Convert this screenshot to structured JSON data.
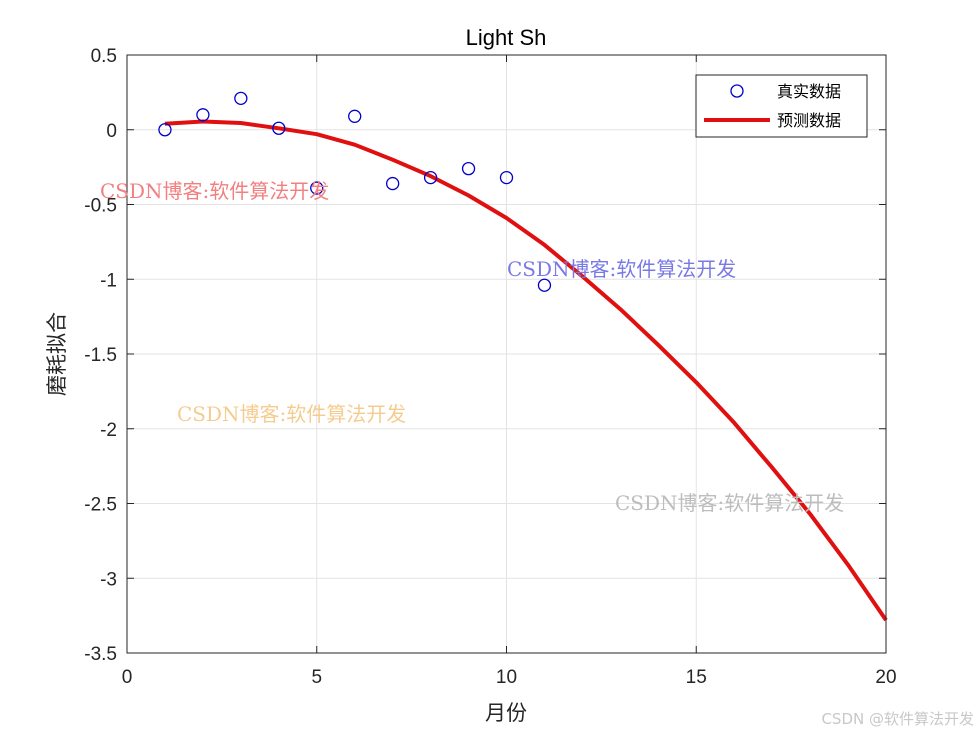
{
  "chart_data": {
    "type": "scatter",
    "title": "Light Sh",
    "xlabel": "月份",
    "ylabel": "磨耗拟合",
    "xlim": [
      0,
      20
    ],
    "ylim": [
      -3.5,
      0.5
    ],
    "xticks": [
      0,
      5,
      10,
      15,
      20
    ],
    "yticks": [
      0.5,
      0,
      -0.5,
      -1,
      -1.5,
      -2,
      -2.5,
      -3,
      -3.5
    ],
    "grid": true,
    "legend_position": "top-right",
    "series": [
      {
        "name": "真实数据",
        "kind": "marker",
        "marker": "circle",
        "color": "#0000cc",
        "x": [
          1,
          2,
          3,
          4,
          5,
          6,
          7,
          8,
          9,
          10,
          11
        ],
        "y": [
          0.0,
          0.1,
          0.21,
          0.01,
          -0.39,
          0.09,
          -0.36,
          -0.32,
          -0.26,
          -0.32,
          -1.04
        ]
      },
      {
        "name": "预测数据",
        "kind": "line",
        "color": "#e01010",
        "x": [
          1,
          2,
          3,
          4,
          5,
          6,
          7,
          8,
          9,
          10,
          11,
          12,
          13,
          14,
          15,
          16,
          17,
          18,
          19,
          20
        ],
        "y": [
          0.04,
          0.055,
          0.045,
          0.01,
          -0.03,
          -0.1,
          -0.2,
          -0.31,
          -0.44,
          -0.59,
          -0.77,
          -0.98,
          -1.2,
          -1.44,
          -1.69,
          -1.96,
          -2.26,
          -2.57,
          -2.91,
          -3.28
        ]
      }
    ]
  },
  "watermarks": [
    {
      "text": "CSDN博客:软件算法开发",
      "color": "#f28080"
    },
    {
      "text": "CSDN博客:软件算法开发",
      "color": "#7a7ae6"
    },
    {
      "text": "CSDN博客:软件算法开发",
      "color": "#f5cc90"
    },
    {
      "text": "CSDN博客:软件算法开发",
      "color": "#bdbdbd"
    }
  ],
  "corner_watermark": "CSDN @软件算法开发"
}
